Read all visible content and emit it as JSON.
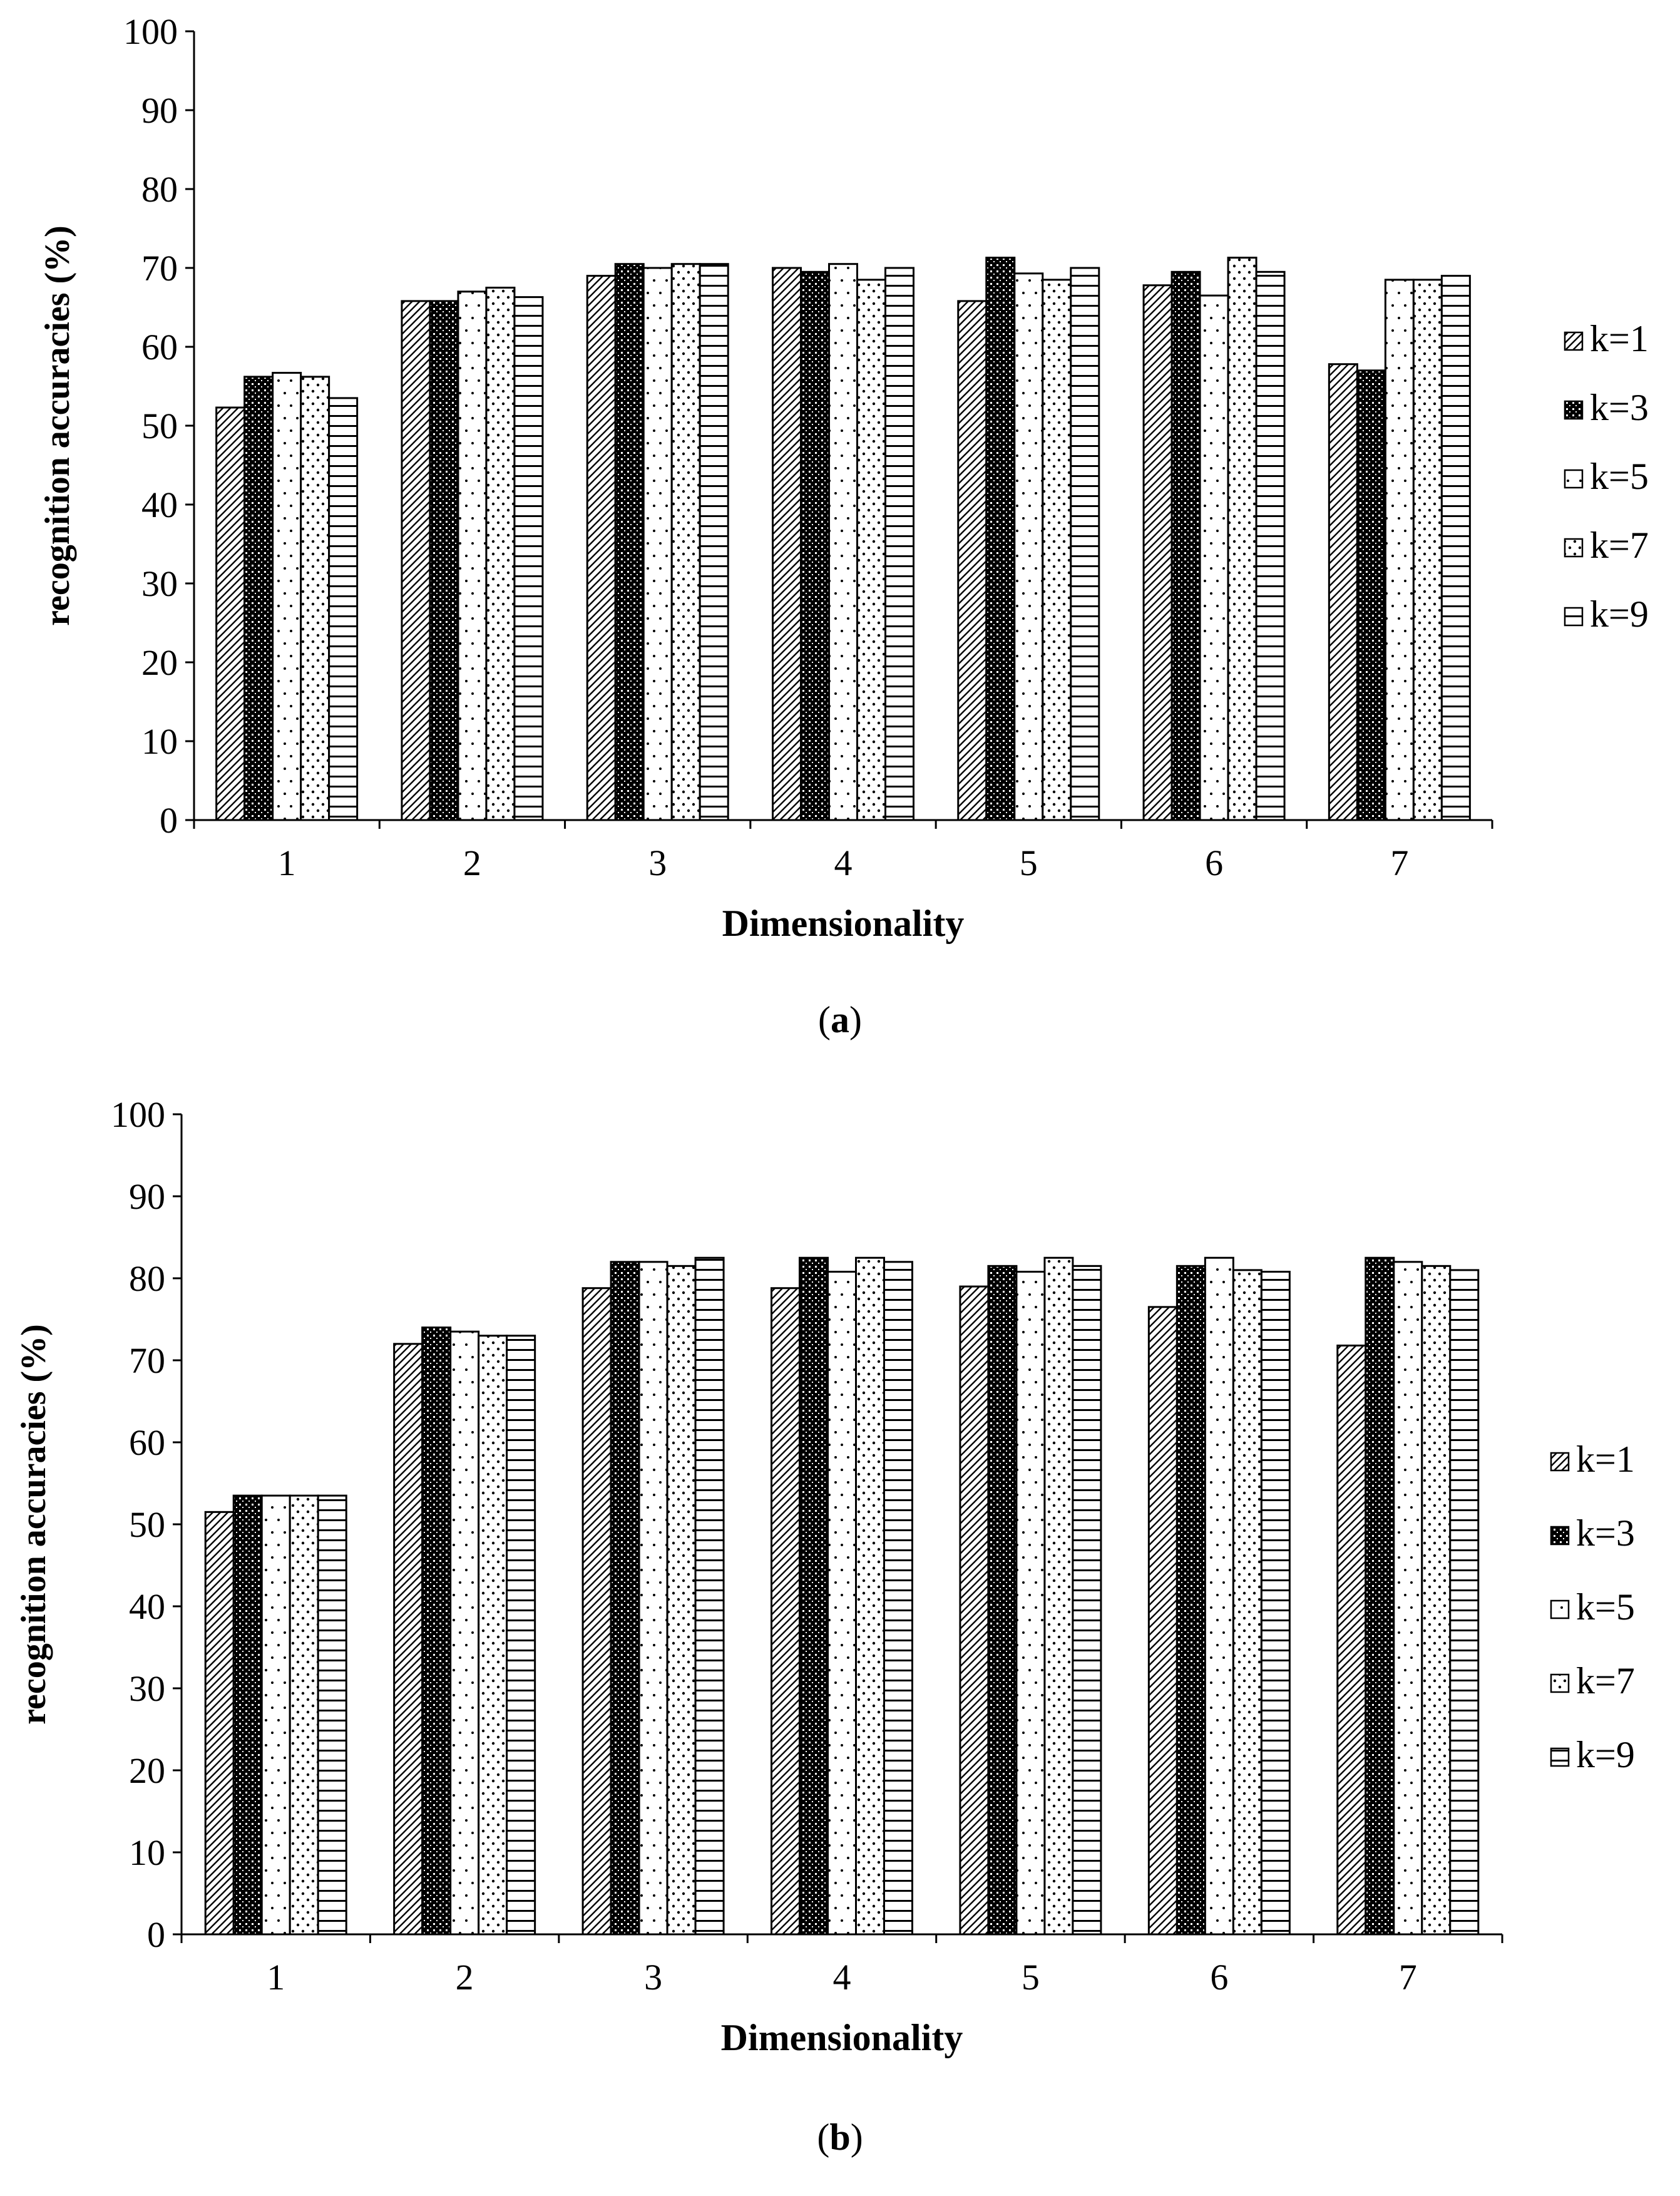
{
  "chart_data": [
    {
      "panel": "a",
      "type": "bar",
      "caption_letter": "a",
      "xlabel": "Dimensionality",
      "ylabel": "recognition accuracies (%)",
      "ylim": [
        0,
        100
      ],
      "yticks": [
        "0",
        "10",
        "20",
        "30",
        "40",
        "50",
        "60",
        "70",
        "80",
        "90",
        "100"
      ],
      "categories": [
        "1",
        "2",
        "3",
        "4",
        "5",
        "6",
        "7"
      ],
      "legend_position": "right",
      "series": [
        {
          "name": "k=1",
          "pattern": "diag",
          "values": [
            52.3,
            65.8,
            69.0,
            70.0,
            65.8,
            67.8,
            57.8
          ]
        },
        {
          "name": "k=3",
          "pattern": "dark",
          "values": [
            56.2,
            65.8,
            70.5,
            69.5,
            71.3,
            69.5,
            57.0
          ]
        },
        {
          "name": "k=5",
          "pattern": "sparse",
          "values": [
            56.7,
            67.0,
            70.0,
            70.5,
            69.3,
            66.5,
            68.5
          ]
        },
        {
          "name": "k=7",
          "pattern": "dots",
          "values": [
            56.2,
            67.5,
            70.5,
            68.5,
            68.5,
            71.3,
            68.5
          ]
        },
        {
          "name": "k=9",
          "pattern": "hlines",
          "values": [
            53.5,
            66.3,
            70.5,
            70.0,
            70.0,
            69.5,
            69.0
          ]
        }
      ]
    },
    {
      "panel": "b",
      "type": "bar",
      "caption_letter": "b",
      "xlabel": "Dimensionality",
      "ylabel": "recognition accuracies (%)",
      "ylim": [
        0,
        100
      ],
      "yticks": [
        "0",
        "10",
        "20",
        "30",
        "40",
        "50",
        "60",
        "70",
        "80",
        "90",
        "100"
      ],
      "categories": [
        "1",
        "2",
        "3",
        "4",
        "5",
        "6",
        "7"
      ],
      "legend_position": "right",
      "series": [
        {
          "name": "k=1",
          "pattern": "diag",
          "values": [
            51.5,
            72.0,
            78.8,
            78.8,
            79.0,
            76.5,
            71.8
          ]
        },
        {
          "name": "k=3",
          "pattern": "dark",
          "values": [
            53.5,
            74.0,
            82.0,
            82.5,
            81.5,
            81.5,
            82.5
          ]
        },
        {
          "name": "k=5",
          "pattern": "sparse",
          "values": [
            53.5,
            73.5,
            82.0,
            80.8,
            80.8,
            82.5,
            82.0
          ]
        },
        {
          "name": "k=7",
          "pattern": "dots",
          "values": [
            53.5,
            73.0,
            81.5,
            82.5,
            82.5,
            81.0,
            81.5
          ]
        },
        {
          "name": "k=9",
          "pattern": "hlines",
          "values": [
            53.5,
            73.0,
            82.5,
            82.0,
            81.5,
            80.8,
            81.0
          ]
        }
      ]
    }
  ]
}
